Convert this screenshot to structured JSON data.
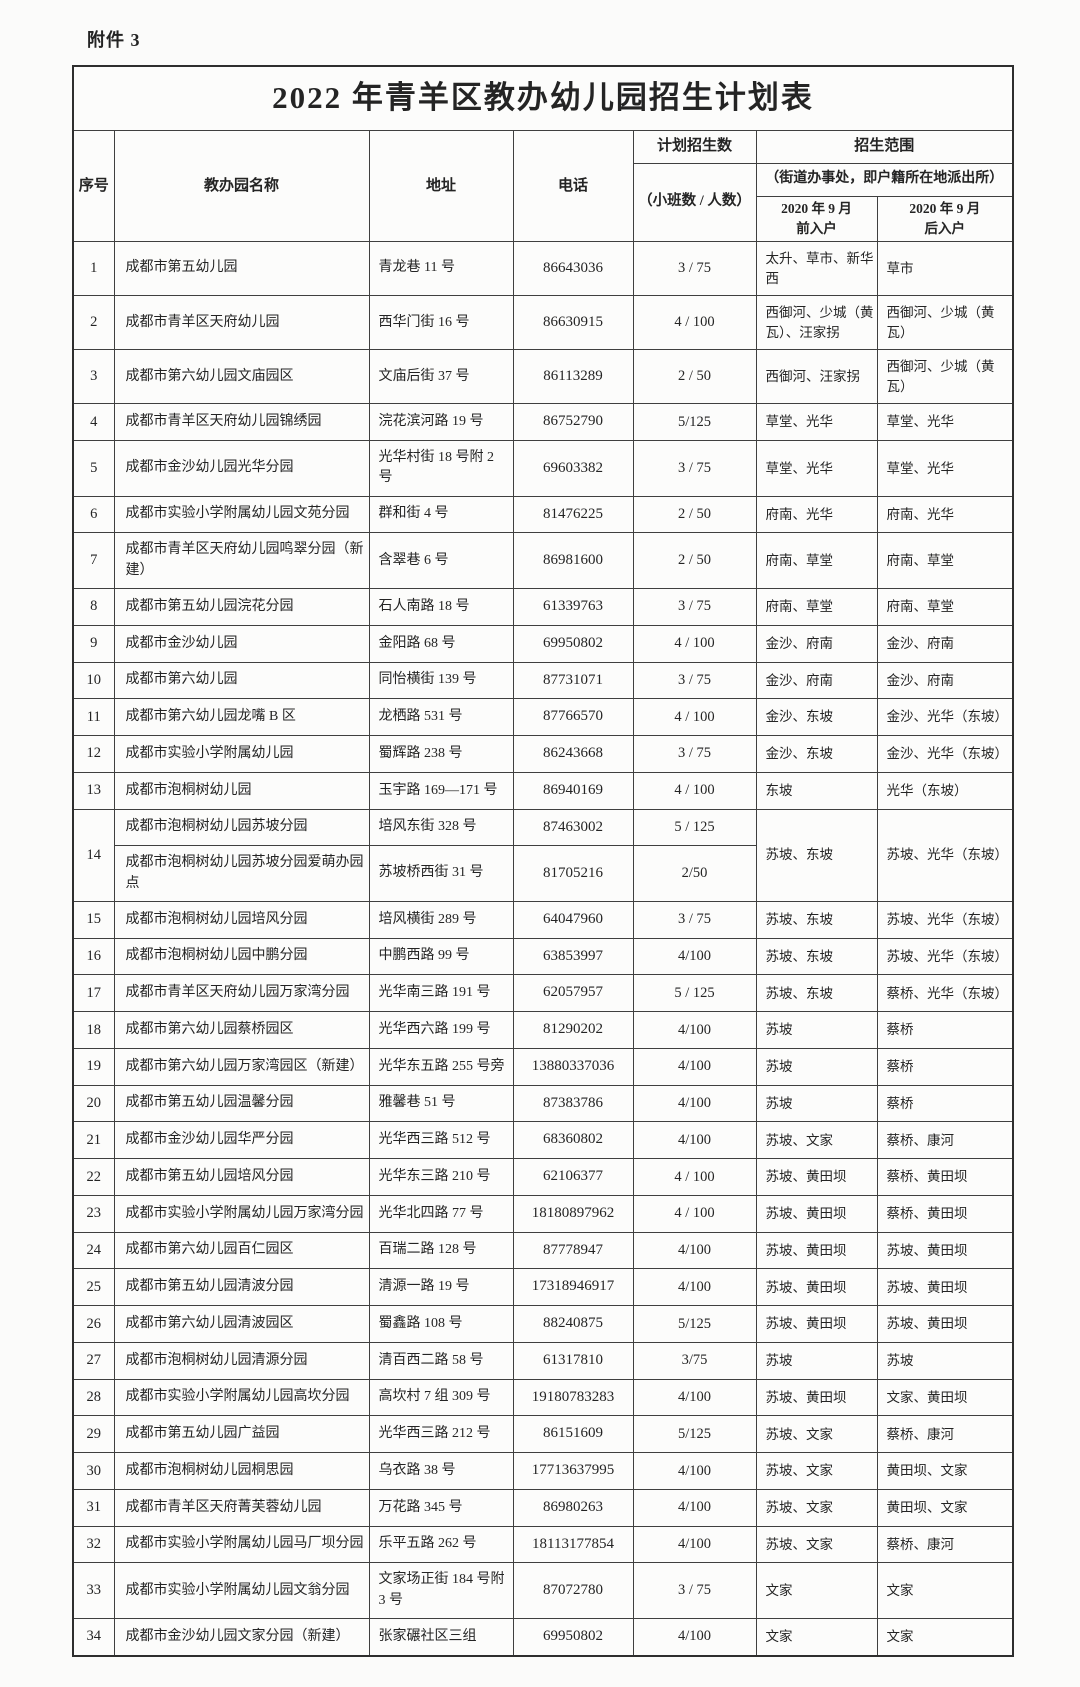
{
  "doc": {
    "attachment_label": "附件 3",
    "title": "2022 年青羊区教办幼儿园招生计划表"
  },
  "table": {
    "headers": {
      "serial": "序号",
      "name": "教办园名称",
      "address": "地址",
      "phone": "电话",
      "plan_top": "计划招生数",
      "plan_sub": "（小班数 / 人数）",
      "scope_top": "招生范围",
      "scope_sub": "（街道办事处，即户籍所在地派出所）",
      "scope_pre": "2020 年 9 月\n前入户",
      "scope_post": "2020 年 9 月\n后入户"
    },
    "rows": [
      {
        "no": "1",
        "pre": "太升、草市、新华西",
        "post": "草市",
        "entries": [
          {
            "name": "成都市第五幼儿园",
            "address": "青龙巷 11 号",
            "phone": "86643036",
            "plan": "3 / 75"
          }
        ]
      },
      {
        "no": "2",
        "pre": "西御河、少城（黄瓦）、汪家拐",
        "post": "西御河、少城（黄瓦）",
        "entries": [
          {
            "name": "成都市青羊区天府幼儿园",
            "address": "西华门街 16 号",
            "phone": "86630915",
            "plan": "4 / 100"
          }
        ]
      },
      {
        "no": "3",
        "pre": "西御河、汪家拐",
        "post": "西御河、少城（黄瓦）",
        "entries": [
          {
            "name": "成都市第六幼儿园文庙园区",
            "address": "文庙后街 37 号",
            "phone": "86113289",
            "plan": "2 / 50"
          }
        ]
      },
      {
        "no": "4",
        "pre": "草堂、光华",
        "post": "草堂、光华",
        "entries": [
          {
            "name": "成都市青羊区天府幼儿园锦绣园",
            "address": "浣花滨河路 19 号",
            "phone": "86752790",
            "plan": "5/125"
          }
        ]
      },
      {
        "no": "5",
        "pre": "草堂、光华",
        "post": "草堂、光华",
        "entries": [
          {
            "name": "成都市金沙幼儿园光华分园",
            "address": "光华村街 18 号附 2 号",
            "phone": "69603382",
            "plan": "3 / 75"
          }
        ]
      },
      {
        "no": "6",
        "pre": "府南、光华",
        "post": "府南、光华",
        "entries": [
          {
            "name": "成都市实验小学附属幼儿园文苑分园",
            "address": "群和街 4 号",
            "phone": "81476225",
            "plan": "2 / 50"
          }
        ]
      },
      {
        "no": "7",
        "pre": "府南、草堂",
        "post": "府南、草堂",
        "entries": [
          {
            "name": "成都市青羊区天府幼儿园鸣翠分园（新建）",
            "address": "含翠巷 6 号",
            "phone": "86981600",
            "plan": "2 / 50"
          }
        ]
      },
      {
        "no": "8",
        "pre": "府南、草堂",
        "post": "府南、草堂",
        "entries": [
          {
            "name": "成都市第五幼儿园浣花分园",
            "address": "石人南路 18 号",
            "phone": "61339763",
            "plan": "3 / 75"
          }
        ]
      },
      {
        "no": "9",
        "pre": "金沙、府南",
        "post": "金沙、府南",
        "entries": [
          {
            "name": "成都市金沙幼儿园",
            "address": "金阳路 68 号",
            "phone": "69950802",
            "plan": "4 / 100"
          }
        ]
      },
      {
        "no": "10",
        "pre": "金沙、府南",
        "post": "金沙、府南",
        "entries": [
          {
            "name": "成都市第六幼儿园",
            "address": "同怡横街 139 号",
            "phone": "87731071",
            "plan": "3 / 75"
          }
        ]
      },
      {
        "no": "11",
        "pre": "金沙、东坡",
        "post": "金沙、光华（东坡）",
        "entries": [
          {
            "name": "成都市第六幼儿园龙嘴 B 区",
            "address": "龙栖路 531 号",
            "phone": "87766570",
            "plan": "4 / 100"
          }
        ]
      },
      {
        "no": "12",
        "pre": "金沙、东坡",
        "post": "金沙、光华（东坡）",
        "entries": [
          {
            "name": "成都市实验小学附属幼儿园",
            "address": "蜀辉路 238 号",
            "phone": "86243668",
            "plan": "3 / 75"
          }
        ]
      },
      {
        "no": "13",
        "pre": "东坡",
        "post": "光华（东坡）",
        "entries": [
          {
            "name": "成都市泡桐树幼儿园",
            "address": "玉宇路 169—171 号",
            "phone": "86940169",
            "plan": "4 / 100"
          }
        ]
      },
      {
        "no": "14",
        "pre": "苏坡、东坡",
        "post": "苏坡、光华（东坡）",
        "entries": [
          {
            "name": "成都市泡桐树幼儿园苏坡分园",
            "address": "培风东街 328 号",
            "phone": "87463002",
            "plan": "5 / 125"
          },
          {
            "name": "成都市泡桐树幼儿园苏坡分园爱萌办园点",
            "address": "苏坡桥西街 31 号",
            "phone": "81705216",
            "plan": "2/50"
          }
        ]
      },
      {
        "no": "15",
        "pre": "苏坡、东坡",
        "post": "苏坡、光华（东坡）",
        "entries": [
          {
            "name": "成都市泡桐树幼儿园培风分园",
            "address": "培风横街 289 号",
            "phone": "64047960",
            "plan": "3 / 75"
          }
        ]
      },
      {
        "no": "16",
        "pre": "苏坡、东坡",
        "post": "苏坡、光华（东坡）",
        "entries": [
          {
            "name": "成都市泡桐树幼儿园中鹏分园",
            "address": "中鹏西路 99 号",
            "phone": "63853997",
            "plan": "4/100"
          }
        ]
      },
      {
        "no": "17",
        "pre": "苏坡、东坡",
        "post": "蔡桥、光华（东坡）",
        "entries": [
          {
            "name": "成都市青羊区天府幼儿园万家湾分园",
            "address": "光华南三路 191 号",
            "phone": "62057957",
            "plan": "5 / 125"
          }
        ]
      },
      {
        "no": "18",
        "pre": "苏坡",
        "post": "蔡桥",
        "entries": [
          {
            "name": "成都市第六幼儿园蔡桥园区",
            "address": "光华西六路 199 号",
            "phone": "81290202",
            "plan": "4/100"
          }
        ]
      },
      {
        "no": "19",
        "pre": "苏坡",
        "post": "蔡桥",
        "entries": [
          {
            "name": "成都市第六幼儿园万家湾园区（新建）",
            "address": "光华东五路 255 号旁",
            "phone": "13880337036",
            "plan": "4/100"
          }
        ]
      },
      {
        "no": "20",
        "pre": "苏坡",
        "post": "蔡桥",
        "entries": [
          {
            "name": "成都市第五幼儿园温馨分园",
            "address": "雅馨巷 51 号",
            "phone": "87383786",
            "plan": "4/100"
          }
        ]
      },
      {
        "no": "21",
        "pre": "苏坡、文家",
        "post": "蔡桥、康河",
        "entries": [
          {
            "name": "成都市金沙幼儿园华严分园",
            "address": "光华西三路 512 号",
            "phone": "68360802",
            "plan": "4/100"
          }
        ]
      },
      {
        "no": "22",
        "pre": "苏坡、黄田坝",
        "post": "蔡桥、黄田坝",
        "entries": [
          {
            "name": "成都市第五幼儿园培风分园",
            "address": "光华东三路 210 号",
            "phone": "62106377",
            "plan": "4 / 100"
          }
        ]
      },
      {
        "no": "23",
        "pre": "苏坡、黄田坝",
        "post": "蔡桥、黄田坝",
        "entries": [
          {
            "name": "成都市实验小学附属幼儿园万家湾分园",
            "address": "光华北四路 77 号",
            "phone": "18180897962",
            "plan": "4 / 100"
          }
        ]
      },
      {
        "no": "24",
        "pre": "苏坡、黄田坝",
        "post": "苏坡、黄田坝",
        "entries": [
          {
            "name": "成都市第六幼儿园百仁园区",
            "address": "百瑞二路 128 号",
            "phone": "87778947",
            "plan": "4/100"
          }
        ]
      },
      {
        "no": "25",
        "pre": "苏坡、黄田坝",
        "post": "苏坡、黄田坝",
        "entries": [
          {
            "name": "成都市第五幼儿园清波分园",
            "address": "清源一路 19 号",
            "phone": "17318946917",
            "plan": "4/100"
          }
        ]
      },
      {
        "no": "26",
        "pre": "苏坡、黄田坝",
        "post": "苏坡、黄田坝",
        "entries": [
          {
            "name": "成都市第六幼儿园清波园区",
            "address": "蜀鑫路 108 号",
            "phone": "88240875",
            "plan": "5/125"
          }
        ]
      },
      {
        "no": "27",
        "pre": "苏坡",
        "post": "苏坡",
        "entries": [
          {
            "name": "成都市泡桐树幼儿园清源分园",
            "address": "清百西二路 58 号",
            "phone": "61317810",
            "plan": "3/75"
          }
        ]
      },
      {
        "no": "28",
        "pre": "苏坡、黄田坝",
        "post": "文家、黄田坝",
        "entries": [
          {
            "name": "成都市实验小学附属幼儿园高坎分园",
            "address": "高坎村 7 组 309 号",
            "phone": "19180783283",
            "plan": "4/100"
          }
        ]
      },
      {
        "no": "29",
        "pre": "苏坡、文家",
        "post": "蔡桥、康河",
        "entries": [
          {
            "name": "成都市第五幼儿园广益园",
            "address": "光华西三路 212 号",
            "phone": "86151609",
            "plan": "5/125"
          }
        ]
      },
      {
        "no": "30",
        "pre": "苏坡、文家",
        "post": "黄田坝、文家",
        "entries": [
          {
            "name": "成都市泡桐树幼儿园桐思园",
            "address": "乌衣路 38 号",
            "phone": "17713637995",
            "plan": "4/100"
          }
        ]
      },
      {
        "no": "31",
        "pre": "苏坡、文家",
        "post": "黄田坝、文家",
        "entries": [
          {
            "name": "成都市青羊区天府菁芙蓉幼儿园",
            "address": "万花路 345 号",
            "phone": "86980263",
            "plan": "4/100"
          }
        ]
      },
      {
        "no": "32",
        "pre": "苏坡、文家",
        "post": "蔡桥、康河",
        "entries": [
          {
            "name": "成都市实验小学附属幼儿园马厂坝分园",
            "address": "乐平五路 262 号",
            "phone": "18113177854",
            "plan": "4/100"
          }
        ]
      },
      {
        "no": "33",
        "pre": "文家",
        "post": "文家",
        "entries": [
          {
            "name": "成都市实验小学附属幼儿园文翁分园",
            "address": "文家场正街 184 号附 3 号",
            "phone": "87072780",
            "plan": "3 / 75"
          }
        ]
      },
      {
        "no": "34",
        "pre": "文家",
        "post": "文家",
        "entries": [
          {
            "name": "成都市金沙幼儿园文家分园（新建）",
            "address": "张家碾社区三组",
            "phone": "69950802",
            "plan": "4/100"
          }
        ]
      }
    ]
  }
}
